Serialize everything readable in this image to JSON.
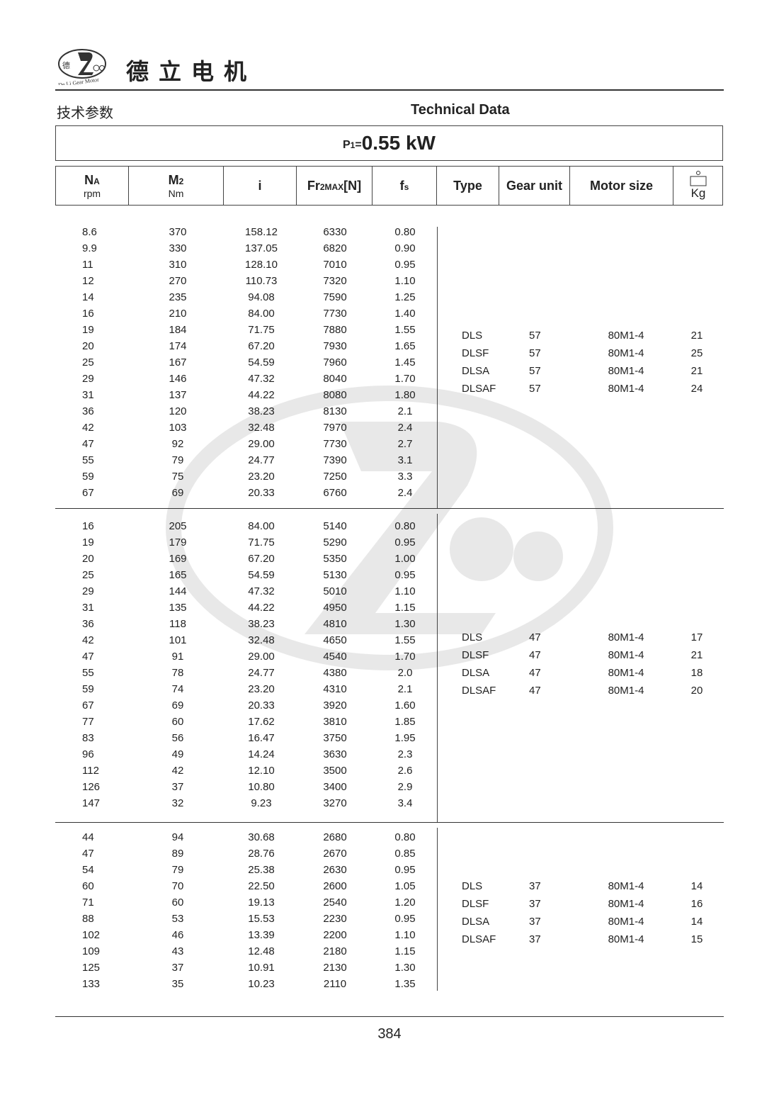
{
  "header": {
    "logo_text": "De Li Gear Motor",
    "logo_chars": "德立",
    "company_name": "德立电机",
    "section_cn": "技术参数",
    "section_en": "Technical Data"
  },
  "power": {
    "prefix": "P",
    "sub": "1",
    "eq": "=",
    "value": "0.55 kW"
  },
  "columns": {
    "na": {
      "label": "N",
      "sub": "A",
      "unit": "rpm"
    },
    "m2": {
      "label": "M",
      "sub": "2",
      "unit": "Nm"
    },
    "i": {
      "label": "i"
    },
    "fr": {
      "label": "Fr",
      "sub": "2MAX",
      "suffix": "[N]"
    },
    "fs": {
      "label": "f",
      "sub": "s"
    },
    "type": {
      "label": "Type"
    },
    "gear_unit": {
      "label": "Gear unit"
    },
    "motor_size": {
      "label": "Motor size"
    },
    "weight": {
      "icon": "weight-icon",
      "unit": "Kg"
    }
  },
  "sections": [
    {
      "rows": [
        [
          "8.6",
          "370",
          "158.12",
          "6330",
          "0.80"
        ],
        [
          "9.9",
          "330",
          "137.05",
          "6820",
          "0.90"
        ],
        [
          "11",
          "310",
          "128.10",
          "7010",
          "0.95"
        ],
        [
          "12",
          "270",
          "110.73",
          "7320",
          "1.10"
        ],
        [
          "14",
          "235",
          "94.08",
          "7590",
          "1.25"
        ],
        [
          "16",
          "210",
          "84.00",
          "7730",
          "1.40"
        ],
        [
          "19",
          "184",
          "71.75",
          "7880",
          "1.55"
        ],
        [
          "20",
          "174",
          "67.20",
          "7930",
          "1.65"
        ],
        [
          "25",
          "167",
          "54.59",
          "7960",
          "1.45"
        ],
        [
          "29",
          "146",
          "47.32",
          "8040",
          "1.70"
        ],
        [
          "31",
          "137",
          "44.22",
          "8080",
          "1.80"
        ],
        [
          "36",
          "120",
          "38.23",
          "8130",
          "2.1"
        ],
        [
          "42",
          "103",
          "32.48",
          "7970",
          "2.4"
        ],
        [
          "47",
          "92",
          "29.00",
          "7730",
          "2.7"
        ],
        [
          "55",
          "79",
          "24.77",
          "7390",
          "3.1"
        ],
        [
          "59",
          "75",
          "23.20",
          "7250",
          "3.3"
        ],
        [
          "67",
          "69",
          "20.33",
          "6760",
          "2.4"
        ]
      ],
      "types": [
        [
          "DLS",
          "57",
          "80M1-4",
          "21"
        ],
        [
          "DLSF",
          "57",
          "80M1-4",
          "25"
        ],
        [
          "DLSA",
          "57",
          "80M1-4",
          "21"
        ],
        [
          "DLSAF",
          "57",
          "80M1-4",
          "24"
        ]
      ]
    },
    {
      "rows": [
        [
          "16",
          "205",
          "84.00",
          "5140",
          "0.80"
        ],
        [
          "19",
          "179",
          "71.75",
          "5290",
          "0.95"
        ],
        [
          "20",
          "169",
          "67.20",
          "5350",
          "1.00"
        ],
        [
          "25",
          "165",
          "54.59",
          "5130",
          "0.95"
        ],
        [
          "29",
          "144",
          "47.32",
          "5010",
          "1.10"
        ],
        [
          "31",
          "135",
          "44.22",
          "4950",
          "1.15"
        ],
        [
          "36",
          "118",
          "38.23",
          "4810",
          "1.30"
        ],
        [
          "42",
          "101",
          "32.48",
          "4650",
          "1.55"
        ],
        [
          "47",
          "91",
          "29.00",
          "4540",
          "1.70"
        ],
        [
          "55",
          "78",
          "24.77",
          "4380",
          "2.0"
        ],
        [
          "59",
          "74",
          "23.20",
          "4310",
          "2.1"
        ],
        [
          "67",
          "69",
          "20.33",
          "3920",
          "1.60"
        ],
        [
          "77",
          "60",
          "17.62",
          "3810",
          "1.85"
        ],
        [
          "83",
          "56",
          "16.47",
          "3750",
          "1.95"
        ],
        [
          "96",
          "49",
          "14.24",
          "3630",
          "2.3"
        ],
        [
          "112",
          "42",
          "12.10",
          "3500",
          "2.6"
        ],
        [
          "126",
          "37",
          "10.80",
          "3400",
          "2.9"
        ],
        [
          "147",
          "32",
          "9.23",
          "3270",
          "3.4"
        ]
      ],
      "types": [
        [
          "DLS",
          "47",
          "80M1-4",
          "17"
        ],
        [
          "DLSF",
          "47",
          "80M1-4",
          "21"
        ],
        [
          "DLSA",
          "47",
          "80M1-4",
          "18"
        ],
        [
          "DLSAF",
          "47",
          "80M1-4",
          "20"
        ]
      ]
    },
    {
      "rows": [
        [
          "44",
          "94",
          "30.68",
          "2680",
          "0.80"
        ],
        [
          "47",
          "89",
          "28.76",
          "2670",
          "0.85"
        ],
        [
          "54",
          "79",
          "25.38",
          "2630",
          "0.95"
        ],
        [
          "60",
          "70",
          "22.50",
          "2600",
          "1.05"
        ],
        [
          "71",
          "60",
          "19.13",
          "2540",
          "1.20"
        ],
        [
          "88",
          "53",
          "15.53",
          "2230",
          "0.95"
        ],
        [
          "102",
          "46",
          "13.39",
          "2200",
          "1.10"
        ],
        [
          "109",
          "43",
          "12.48",
          "2180",
          "1.15"
        ],
        [
          "125",
          "37",
          "10.91",
          "2130",
          "1.30"
        ],
        [
          "133",
          "35",
          "10.23",
          "2110",
          "1.35"
        ]
      ],
      "types": [
        [
          "DLS",
          "37",
          "80M1-4",
          "14"
        ],
        [
          "DLSF",
          "37",
          "80M1-4",
          "16"
        ],
        [
          "DLSA",
          "37",
          "80M1-4",
          "14"
        ],
        [
          "DLSAF",
          "37",
          "80M1-4",
          "15"
        ]
      ]
    }
  ],
  "footer": {
    "page_number": "384"
  }
}
